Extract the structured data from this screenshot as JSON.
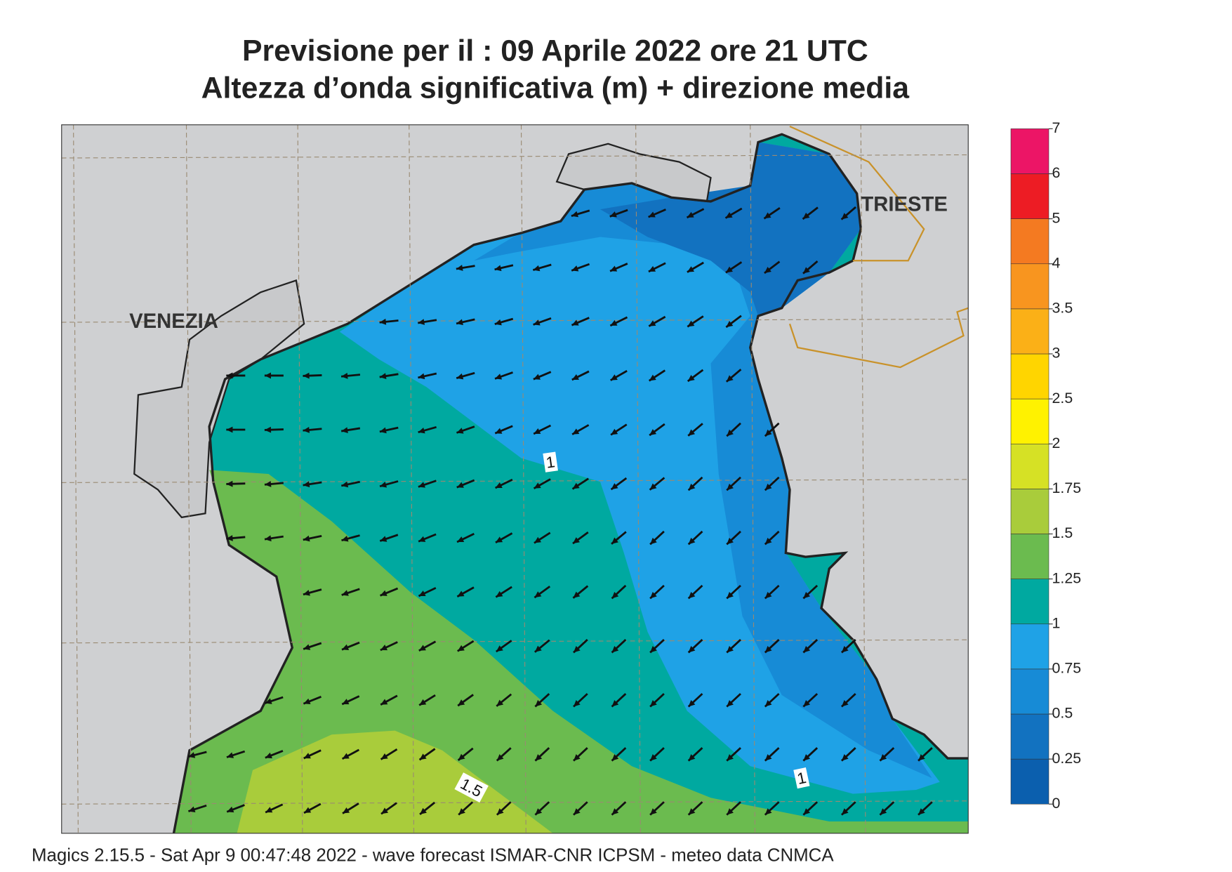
{
  "header": {
    "title": "Previsione per il  :  09   Aprile  2022   ore 21 UTC",
    "subtitle": "Altezza d’onda significativa (m) + direzione media"
  },
  "places": [
    {
      "label": "VENEZIA"
    },
    {
      "label": "TRIESTE"
    }
  ],
  "contour_labels": [
    "1",
    "1",
    "1.5"
  ],
  "legend": {
    "ticks": [
      0,
      0.25,
      0.5,
      0.75,
      1,
      1.25,
      1.5,
      1.75,
      2,
      2.5,
      3,
      3.5,
      4,
      5,
      6,
      7
    ],
    "colors": [
      "#0b5fae",
      "#1272c0",
      "#178bd6",
      "#1fa2e6",
      "#00a9a0",
      "#6bbb4f",
      "#a9cc3b",
      "#d6e125",
      "#fff200",
      "#ffd500",
      "#fbb017",
      "#f8951f",
      "#f47a21",
      "#ed1c24",
      "#ec1566"
    ]
  },
  "footer": "Magics 2.15.5 - Sat Apr  9 00:47:48 2022 - wave forecast  ISMAR-CNR  ICPSM - meteo data   CNMCA"
}
